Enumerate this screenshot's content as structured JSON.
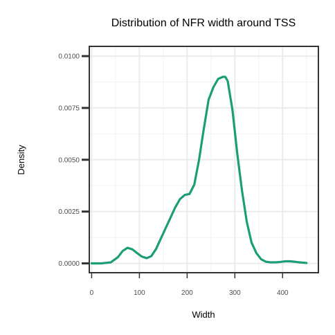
{
  "chart_data": {
    "type": "line",
    "title": "Distribution of NFR width around TSS",
    "xlabel": "Width",
    "ylabel": "Density",
    "xlim": [
      -5,
      475
    ],
    "ylim": [
      -0.00045,
      0.01047
    ],
    "x_ticks": [
      0,
      100,
      200,
      300,
      400
    ],
    "x_tick_labels": [
      "0",
      "100",
      "200",
      "300",
      "400"
    ],
    "x_minor_ticks": [
      50,
      150,
      250,
      350,
      450
    ],
    "y_ticks": [
      0,
      0.0025,
      0.005,
      0.0075,
      0.01
    ],
    "y_tick_labels": [
      "0.0000",
      "0.0025",
      "0.0050",
      "0.0075",
      "0.0100"
    ],
    "y_minor_ticks": [
      0.00125,
      0.00375,
      0.00625,
      0.00875
    ],
    "grid": true,
    "series": [
      {
        "color": "#1b9e77",
        "x": [
          0,
          20,
          40,
          55,
          65,
          75,
          85,
          95,
          105,
          115,
          125,
          135,
          145,
          155,
          165,
          175,
          185,
          195,
          205,
          215,
          225,
          235,
          245,
          255,
          265,
          275,
          280,
          285,
          295,
          305,
          315,
          325,
          335,
          345,
          355,
          365,
          375,
          385,
          395,
          405,
          415,
          425,
          435,
          450
        ],
        "values": [
          0.0,
          0.0,
          5e-05,
          0.0003,
          0.0006,
          0.00075,
          0.00068,
          0.0005,
          0.00033,
          0.00025,
          0.00035,
          0.0007,
          0.0012,
          0.0017,
          0.0022,
          0.0027,
          0.0031,
          0.0033,
          0.00335,
          0.0038,
          0.005,
          0.0065,
          0.0079,
          0.0085,
          0.0089,
          0.009,
          0.009,
          0.0088,
          0.0074,
          0.0053,
          0.0035,
          0.002,
          0.001,
          0.0005,
          0.0002,
          8e-05,
          5e-05,
          5e-05,
          7e-05,
          0.0001,
          0.0001,
          8e-05,
          5e-05,
          2e-05
        ]
      }
    ]
  }
}
